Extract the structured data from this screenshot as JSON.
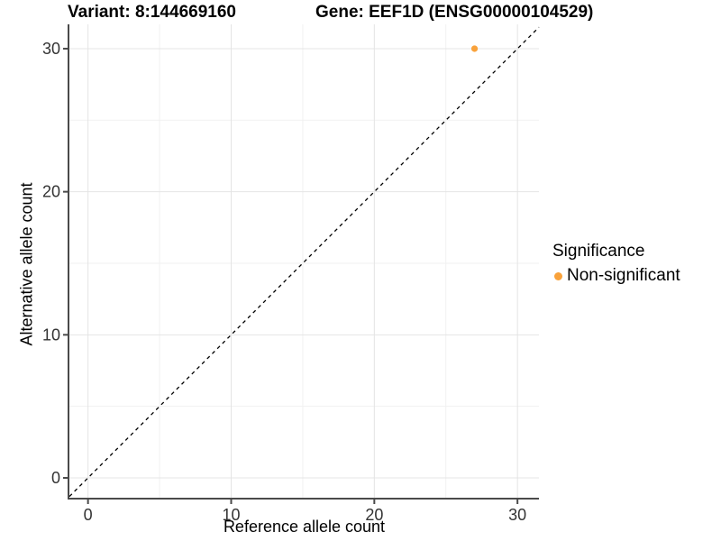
{
  "chart_data": {
    "type": "scatter",
    "title_parts": [
      "Variant: 8:144669160",
      "Gene: EEF1D (ENSG00000104529)"
    ],
    "xlabel": "Reference allele count",
    "ylabel": "Alternative allele count",
    "xlim": [
      -1.3,
      31.5
    ],
    "ylim": [
      -1.45,
      31.7
    ],
    "x_ticks": [
      "0",
      "10",
      "20",
      "30"
    ],
    "x_tick_values": [
      0,
      10,
      20,
      30
    ],
    "y_ticks": [
      "0",
      "10",
      "20",
      "30"
    ],
    "y_tick_values": [
      0,
      10,
      20,
      30
    ],
    "x_minor_tick_values": [
      5,
      15,
      25
    ],
    "y_minor_tick_values": [
      5,
      15,
      25
    ],
    "grid": {
      "major": true,
      "minor": true,
      "major_color": "#e4e4e4",
      "minor_color": "#f1f1f1"
    },
    "axis_color": "#4a4a4a",
    "tick_label_color": "#333333",
    "reference_line": {
      "type": "identity y=x",
      "style": "dashed",
      "color": "#000000"
    },
    "series": [
      {
        "name": "Non-significant",
        "color": "#f9a23b",
        "points": [
          {
            "x": 27,
            "y": 30
          }
        ]
      }
    ],
    "legend": {
      "title": "Significance",
      "position": "right",
      "entries": [
        {
          "label": "Non-significant",
          "color": "#f9a23b",
          "marker": "circle"
        }
      ]
    }
  }
}
